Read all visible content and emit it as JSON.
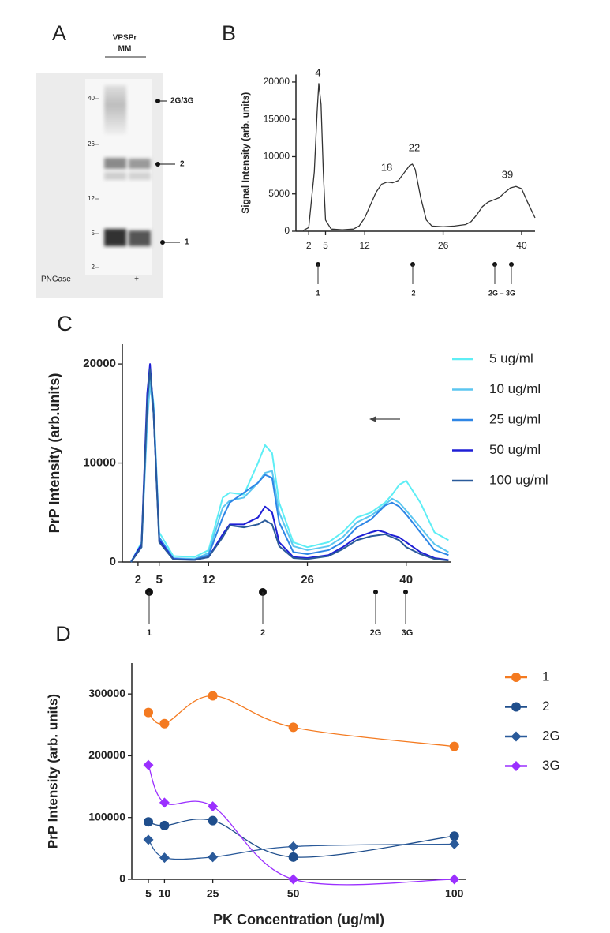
{
  "panels": {
    "a": "A",
    "b": "B",
    "c": "C",
    "d": "D"
  },
  "gel": {
    "header": [
      "VPSPr",
      "MM"
    ],
    "ladder": [
      40,
      26,
      12,
      5,
      2
    ],
    "markers": [
      "2G/3G",
      "2",
      "1"
    ],
    "row_label": "PNGase",
    "lanes": [
      "-",
      "+"
    ]
  },
  "chart_data": [
    {
      "type": "line",
      "ylabel": "Signal Intensity (arb. units)",
      "x": [
        1,
        2,
        3,
        3.5,
        3.8,
        4.2,
        4.6,
        5,
        6,
        8,
        10,
        11,
        12,
        13,
        14,
        15,
        16,
        17,
        18,
        19,
        20,
        20.5,
        21,
        22,
        23,
        24,
        26,
        28,
        30,
        31,
        32,
        33,
        34,
        35,
        36,
        37,
        38,
        39,
        40,
        41,
        42.4
      ],
      "series": [
        {
          "color": "#333333",
          "values": [
            100,
            500,
            8000,
            16000,
            19800,
            17000,
            8000,
            1500,
            300,
            200,
            300,
            700,
            1800,
            3500,
            5200,
            6300,
            6600,
            6500,
            6800,
            7800,
            8800,
            9000,
            8300,
            4500,
            1500,
            700,
            600,
            700,
            900,
            1300,
            2200,
            3300,
            3900,
            4200,
            4500,
            5200,
            5800,
            6000,
            5700,
            4000,
            1800
          ]
        }
      ],
      "xlim": [
        0,
        42.4
      ],
      "ylim": [
        0,
        21000
      ],
      "xticks": [
        2,
        5,
        12,
        26,
        40
      ],
      "yticks": [
        0,
        5000,
        10000,
        15000,
        20000
      ],
      "annotations": [
        "4",
        "18",
        "22",
        "39"
      ],
      "band_labels": [
        "1",
        "2",
        "2G – 3G"
      ]
    },
    {
      "type": "line",
      "ylabel": "PrP Intensity (arb.units)",
      "x": [
        1,
        2.5,
        3.3,
        3.7,
        4.2,
        5,
        7,
        10,
        12,
        14,
        15,
        17,
        19,
        20,
        21,
        22,
        24,
        26,
        29,
        31,
        33,
        35,
        36,
        37,
        38,
        39,
        40,
        42,
        44,
        46
      ],
      "series": [
        {
          "name": "5 ug/ml",
          "color": "#5eeef5",
          "values": [
            0,
            2000,
            15000,
            19000,
            16000,
            3000,
            600,
            500,
            1200,
            6500,
            7000,
            6800,
            10000,
            11800,
            11000,
            6000,
            2000,
            1500,
            2000,
            3000,
            4500,
            5000,
            5500,
            6000,
            6800,
            7800,
            8200,
            6000,
            3000,
            2200
          ]
        },
        {
          "name": "10 ug/ml",
          "color": "#5cc6f0",
          "values": [
            0,
            1500,
            14000,
            18000,
            15000,
            2500,
            400,
            300,
            900,
            5500,
            6200,
            6500,
            8000,
            9000,
            9200,
            5000,
            1600,
            1200,
            1600,
            2500,
            4000,
            4700,
            5200,
            5800,
            6400,
            6000,
            5200,
            3500,
            1800,
            1000
          ]
        },
        {
          "name": "25 ug/ml",
          "color": "#2e86e6",
          "values": [
            0,
            1500,
            16000,
            19500,
            15500,
            2500,
            300,
            250,
            700,
            4500,
            6000,
            7000,
            8000,
            8800,
            8500,
            4000,
            1000,
            800,
            1200,
            2000,
            3500,
            4300,
            5000,
            5700,
            6000,
            5600,
            4800,
            3000,
            1200,
            700
          ]
        },
        {
          "name": "50 ug/ml",
          "color": "#1f1fd6",
          "values": [
            0,
            1800,
            17000,
            20000,
            15000,
            2200,
            300,
            200,
            500,
            2800,
            3800,
            3800,
            4500,
            5600,
            5000,
            2000,
            500,
            400,
            700,
            1500,
            2500,
            3000,
            3200,
            3000,
            2700,
            2500,
            2000,
            1000,
            400,
            200
          ]
        },
        {
          "name": "100 ug/ml",
          "color": "#2a5a9a",
          "values": [
            0,
            1500,
            16000,
            19500,
            15000,
            2000,
            250,
            200,
            500,
            2500,
            3700,
            3500,
            3800,
            4200,
            3800,
            1600,
            400,
            300,
            600,
            1300,
            2200,
            2600,
            2700,
            2800,
            2500,
            2200,
            1500,
            800,
            300,
            150
          ]
        }
      ],
      "xlim": [
        0,
        46.4
      ],
      "ylim": [
        0,
        22000
      ],
      "xticks": [
        2,
        5,
        12,
        26,
        40
      ],
      "yticks": [
        0,
        10000,
        20000
      ],
      "legend": "outside-right",
      "band_labels": [
        "1",
        "2",
        "2G",
        "3G"
      ]
    },
    {
      "type": "line",
      "smooth": true,
      "xlabel": "PK Concentration (ug/ml)",
      "ylabel": "PrP Intensity (arb. units)",
      "x": [
        5,
        10,
        25,
        50,
        100
      ],
      "series": [
        {
          "name": "1",
          "color": "#f47a20",
          "marker": "circle",
          "values": [
            270000,
            252000,
            297000,
            246000,
            215000
          ]
        },
        {
          "name": "2",
          "color": "#1f4e8c",
          "marker": "circle",
          "values": [
            93000,
            87000,
            95000,
            36000,
            70000
          ]
        },
        {
          "name": "2G",
          "color": "#2a5a9a",
          "marker": "diamond",
          "values": [
            64000,
            35000,
            36000,
            53000,
            57000
          ]
        },
        {
          "name": "3G",
          "color": "#9b30ff",
          "marker": "diamond",
          "values": [
            185000,
            124000,
            118000,
            0,
            0
          ]
        }
      ],
      "xlim": [
        0,
        103.5
      ],
      "ylim": [
        0,
        350000
      ],
      "xticks": [
        5,
        10,
        25,
        50,
        100
      ],
      "yticks": [
        0,
        100000,
        200000,
        300000
      ],
      "legend": "outside-right"
    }
  ]
}
